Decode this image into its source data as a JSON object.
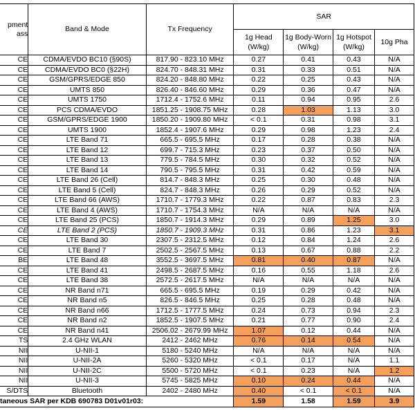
{
  "header": {
    "class_lines": [
      "pment",
      "ass"
    ],
    "band": "Band & Mode",
    "freq": "Tx Frequency",
    "sar": "SAR",
    "sar_cols": [
      "1g Head (W/kg)",
      "1g Body-Worn (W/kg)",
      "1g Hotspot (W/kg)",
      "10g Pha"
    ]
  },
  "table": {
    "highlight_color": "#f5a05a",
    "italic_rows": [
      17
    ],
    "rows": [
      [
        "CE",
        "CDMA/EVDO BC10 (§90S)",
        "817.90 - 823.10 MHz",
        "0.27",
        "0.41",
        "0.43",
        "N/A"
      ],
      [
        "CE",
        "CDMA/EVDO BC0 (§22H)",
        "824.70 - 848.31 MHz",
        "0.31",
        "0.33",
        "0.51",
        "N/A"
      ],
      [
        "CE",
        "GSM/GPRS/EDGE 850",
        "824.20 - 848.80 MHz",
        "0.22",
        "0.25",
        "0.43",
        "N/A"
      ],
      [
        "CE",
        "UMTS 850",
        "826.40 - 846.60 MHz",
        "0.29",
        "0.36",
        "0.47",
        "N/A"
      ],
      [
        "CE",
        "UMTS 1750",
        "1712.4 - 1752.6 MHz",
        "0.11",
        "0.94",
        "0.95",
        "2.6"
      ],
      [
        "CE",
        "PCS CDMA/EVDO",
        "1851.25 - 1908.75 MHz",
        "0.28",
        "1.03",
        "1.13",
        "3.0"
      ],
      [
        "CE",
        "GSM/GPRS/EDGE 1900",
        "1850.20 - 1909.80 MHz",
        "< 0.1",
        "0.31",
        "0.98",
        "3.1"
      ],
      [
        "CE",
        "UMTS 1900",
        "1852.4 - 1907.6 MHz",
        "0.29",
        "0.98",
        "1.23",
        "2.4"
      ],
      [
        "CE",
        "LTE Band 71",
        "665.5 - 695.5 MHz",
        "0.17",
        "0.28",
        "0.38",
        "N/A"
      ],
      [
        "CE",
        "LTE Band 12",
        "699.7 - 715.3 MHz",
        "0.23",
        "0.37",
        "0.50",
        "N/A"
      ],
      [
        "CE",
        "LTE Band 13",
        "779.5 - 784.5 MHz",
        "0.30",
        "0.32",
        "0.52",
        "N/A"
      ],
      [
        "CE",
        "LTE Band 14",
        "790.5 - 795.5 MHz",
        "0.31",
        "0.42",
        "0.59",
        "N/A"
      ],
      [
        "CE",
        "LTE Band 26 (Cell)",
        "814.7 - 848.3 MHz",
        "0.25",
        "0.30",
        "0.48",
        "N/A"
      ],
      [
        "CE",
        "LTE Band 5 (Cell)",
        "824.7 - 848.3 MHz",
        "0.26",
        "0.29",
        "0.52",
        "N/A"
      ],
      [
        "CE",
        "LTE Band 66 (AWS)",
        "1710.7 - 1779.3 MHz",
        "0.22",
        "0.87",
        "0.83",
        "2.3"
      ],
      [
        "CE",
        "LTE Band 4 (AWS)",
        "1710.7 - 1754.3 MHz",
        "N/A",
        "N/A",
        "N/A",
        "N/A"
      ],
      [
        "CE",
        "LTE Band 25 (PCS)",
        "1850.7 - 1914.3 MHz",
        "0.29",
        "0.89",
        "1.25",
        "3.0"
      ],
      [
        "CE",
        "LTE Band 2 (PCS)",
        "1850.7 - 1909.3 MHz",
        "0.31",
        "0.86",
        "1.23",
        "3.1"
      ],
      [
        "CE",
        "LTE Band 30",
        "2307.5 - 2312.5 MHz",
        "0.12",
        "0.84",
        "1.24",
        "2.6"
      ],
      [
        "CE",
        "LTE Band 7",
        "2502.5 - 2567.5 MHz",
        "0.13",
        "0.67",
        "0.88",
        "2.2"
      ],
      [
        "BE",
        "LTE Band 48",
        "3552.5 - 3697.5 MHz",
        "0.81",
        "0.40",
        "0.87",
        "N/A"
      ],
      [
        "CE",
        "LTE Band 41",
        "2498.5 - 2687.5 MHz",
        "0.16",
        "0.55",
        "1.18",
        "2.6"
      ],
      [
        "CE",
        "LTE Band 38",
        "2572.5 - 2617.5 MHz",
        "N/A",
        "N/A",
        "N/A",
        "N/A"
      ],
      [
        "CE",
        "NR Band n71",
        "665.5 - 695.5 MHz",
        "0.19",
        "0.29",
        "0.42",
        "N/A"
      ],
      [
        "CE",
        "NR Band n5",
        "826.5 - 846.5 MHz",
        "0.25",
        "0.28",
        "0.48",
        "N/A"
      ],
      [
        "CE",
        "NR Band n66",
        "1712.5 - 1777.5 MHz",
        "0.24",
        "0.73",
        "0.94",
        "2.3"
      ],
      [
        "CE",
        "NR Band n2",
        "1852.5 - 1907.5 MHz",
        "0.21",
        "0.77",
        "0.90",
        "2.4"
      ],
      [
        "CE",
        "NR Band n41",
        "2506.02 - 2679.99 MHz",
        "1.07",
        "0.12",
        "0.44",
        "N/A"
      ],
      [
        "TS",
        "2.4 GHz WLAN",
        "2412 - 2462 MHz",
        "0.76",
        "0.14",
        "0.54",
        "N/A"
      ],
      [
        "NII",
        "U-NII-1",
        "5180 - 5240 MHz",
        "N/A",
        "N/A",
        "N/A",
        "N/A"
      ],
      [
        "NII",
        "U-NII-2A",
        "5260 - 5320 MHz",
        "< 0.1",
        "0.17",
        "N/A",
        "1.1"
      ],
      [
        "NII",
        "U-NII-2C",
        "5500 - 5720 MHz",
        "< 0.1",
        "0.23",
        "N/A",
        "1.2"
      ],
      [
        "NII",
        "U-NII-3",
        "5745 - 5825 MHz",
        "0.10",
        "0.24",
        "0.44",
        "N/A"
      ],
      [
        "S/DTS",
        "Bluetooth",
        "2402 - 2480 MHz",
        "0.40",
        "< 0.1",
        "< 0.1",
        "N/A"
      ]
    ],
    "highlighted": [
      [
        5,
        4
      ],
      [
        16,
        5
      ],
      [
        17,
        6
      ],
      [
        20,
        3
      ],
      [
        20,
        4
      ],
      [
        20,
        5
      ],
      [
        27,
        3
      ],
      [
        28,
        3
      ],
      [
        28,
        4
      ],
      [
        28,
        5
      ],
      [
        31,
        6
      ],
      [
        32,
        3
      ],
      [
        32,
        4
      ],
      [
        32,
        5
      ],
      [
        33,
        3
      ],
      [
        33,
        5
      ]
    ],
    "footer": {
      "label": "taneous SAR per KDB 690783 D01v01r03:",
      "values": [
        "1.59",
        "1.58",
        "1.59",
        "3.9"
      ],
      "highlighted": [
        0,
        2,
        3
      ]
    }
  }
}
